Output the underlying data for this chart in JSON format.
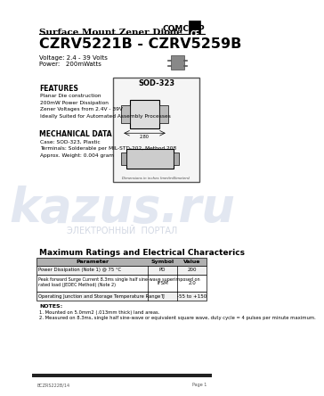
{
  "bg_color": "#ffffff",
  "title_line": "Surface Mount Zener Diode",
  "part_number": "CZRV5221B - CZRV5259B",
  "voltage_line": "Voltage: 2.4 - 39 Volts",
  "power_line": "Power:   200mWatts",
  "features_title": "FEATURES",
  "features": [
    "Planar Die construction",
    "200mW Power Dissipation",
    "Zener Voltages from 2.4V - 39V",
    "Ideally Suited for Automated Assembly Processes"
  ],
  "mech_title": "MECHANICAL DATA",
  "mech_data": [
    "Case: SOD-323, Plastic",
    "Terminals: Solderable per MIL-STD-202, Method 208",
    "Approx. Weight: 0.004 gram"
  ],
  "sod_label": "SOD-323",
  "table_title": "Maximum Ratings and Electrical Characterics",
  "table_headers": [
    "Parameter",
    "Symbol",
    "Value"
  ],
  "table_rows": [
    [
      "Power Dissipation (Note 1) @ 75 °C",
      "PD",
      "200"
    ],
    [
      "Peak forward Surge Current 8.3ms single half sine-wave superimposed on\nrated load (JEDEC Method) (Note 2)",
      "IFSM",
      "2.0"
    ],
    [
      "Operating Junction and Storage Temperature Range",
      "TJ",
      "-55 to +150"
    ]
  ],
  "notes_title": "NOTES:",
  "note1": "1. Mounted on 5.0mm2 (.013mm thick) land areas.",
  "note2": "2. Measured on 8.3ms, single half sine-wave or equivalent square wave, duty cycle = 4 pulses per minute maximum.",
  "footer_left": "BCZRS222B/14",
  "footer_right": "Page 1",
  "comchip_text": "COMCHIP",
  "watermark_text": "kazus.ru",
  "watermark_sub": "ЭЛЕКТРОННЫЙ  ПОРТАЛ"
}
